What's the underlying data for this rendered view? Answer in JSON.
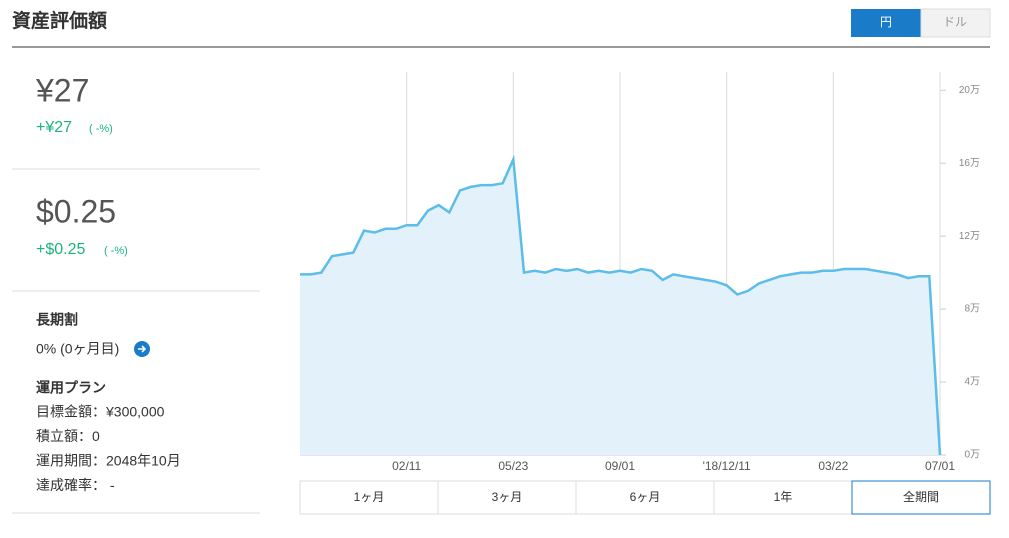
{
  "header": {
    "title": "資産評価額",
    "currency": [
      "円",
      "ドル"
    ]
  },
  "summary": {
    "jpy": {
      "value": "¥27",
      "change": "+¥27",
      "pct": "( -%)"
    },
    "usd": {
      "value": "$0.25",
      "change": "+$0.25",
      "pct": "( -%)"
    }
  },
  "long_term": {
    "label": "長期割",
    "value": "0% (0ヶ月目)"
  },
  "plan": {
    "title": "運用プラン",
    "items": [
      "目標金額：¥300,000",
      "積立額：0",
      "運用期間：2048年10月",
      "達成確率： -"
    ]
  },
  "periods": [
    "1ヶ月",
    "3ヶ月",
    "6ヶ月",
    "1年",
    "全期間"
  ],
  "chart_data": {
    "type": "line",
    "color": "#5bbde8",
    "area_color": "#e3f1fa",
    "categories": [
      null,
      null,
      null,
      null,
      null,
      null,
      null,
      null,
      null,
      null,
      "02/11",
      null,
      null,
      null,
      null,
      null,
      null,
      null,
      null,
      null,
      "05/23",
      null,
      null,
      null,
      null,
      null,
      null,
      null,
      null,
      null,
      "09/01",
      null,
      null,
      null,
      null,
      null,
      null,
      null,
      null,
      null,
      "'18/12/11",
      null,
      null,
      null,
      null,
      null,
      null,
      null,
      null,
      null,
      "03/22",
      null,
      null,
      null,
      null,
      null,
      null,
      null,
      null,
      null,
      "07/01"
    ],
    "values": [
      99000,
      99000,
      100000,
      109000,
      110000,
      111000,
      123000,
      122000,
      124000,
      124000,
      126000,
      126000,
      134000,
      137000,
      133000,
      145000,
      147000,
      148000,
      148000,
      149000,
      162000,
      100000,
      101000,
      100000,
      102000,
      101000,
      102000,
      100000,
      101000,
      100000,
      101000,
      100000,
      102000,
      101000,
      96000,
      99000,
      98000,
      97000,
      96000,
      95000,
      93000,
      88000,
      90000,
      94000,
      96000,
      98000,
      99000,
      100000,
      100000,
      101000,
      101000,
      102000,
      102000,
      102000,
      101000,
      100000,
      99000,
      97000,
      98000,
      98000,
      0
    ],
    "ylim": [
      0,
      210000
    ],
    "yticks": [
      {
        "value": 0,
        "label": "0万"
      },
      {
        "value": 40000,
        "label": "4万"
      },
      {
        "value": 80000,
        "label": "8万"
      },
      {
        "value": 120000,
        "label": "12万"
      },
      {
        "value": 160000,
        "label": "16万"
      },
      {
        "value": 200000,
        "label": "20万"
      }
    ]
  }
}
